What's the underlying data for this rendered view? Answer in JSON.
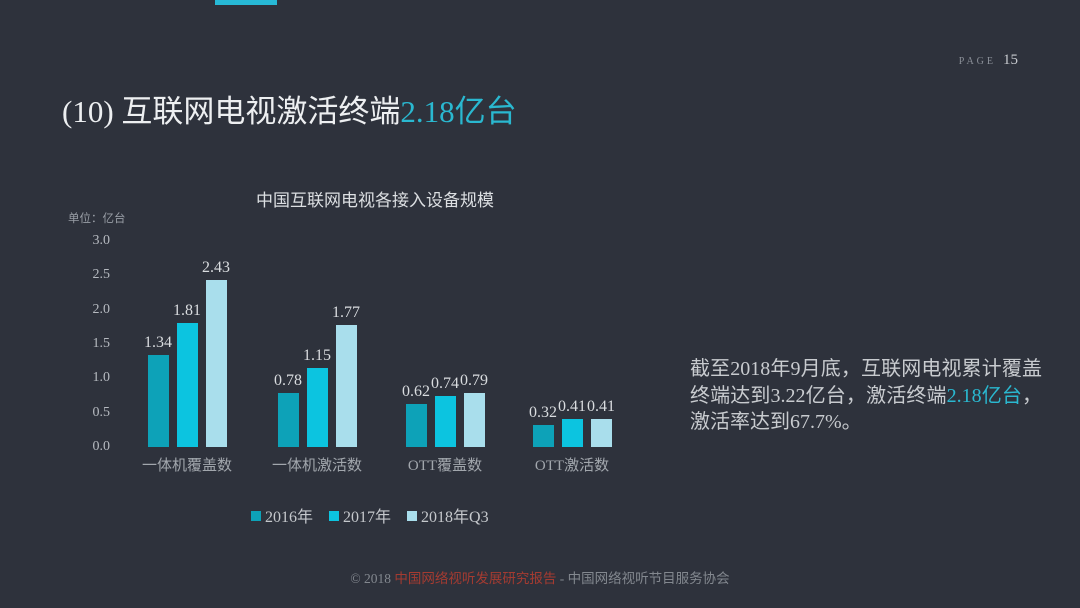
{
  "slide": {
    "background_color": "#2e323c",
    "accent_color": "#27b9d6"
  },
  "header": {
    "page_label": "PAGE",
    "page_number": "15"
  },
  "title": {
    "prefix": "(10) 互联网电视激活终端",
    "highlight": "2.18亿台",
    "highlight_color": "#2ab8d0"
  },
  "chart_data": {
    "type": "bar",
    "title": "中国互联网电视各接入设备规模",
    "unit_label": "单位：亿台",
    "categories": [
      "一体机覆盖数",
      "一体机激活数",
      "OTT覆盖数",
      "OTT激活数"
    ],
    "series": [
      {
        "name": "2016年",
        "color": "#0da2b8",
        "values": [
          1.34,
          0.78,
          0.62,
          0.32
        ]
      },
      {
        "name": "2017年",
        "color": "#0cc4e0",
        "values": [
          1.81,
          1.15,
          0.74,
          0.41
        ]
      },
      {
        "name": "2018年Q3",
        "color": "#a9deec",
        "values": [
          2.43,
          1.77,
          0.79,
          0.41
        ]
      }
    ],
    "y_ticks": [
      "3.0",
      "2.5",
      "2.0",
      "1.5",
      "1.0",
      "0.5",
      "0.0"
    ],
    "ylim": [
      0,
      3.0
    ],
    "grid": false,
    "legend_position": "bottom",
    "value_labels_shown": true
  },
  "annotation": {
    "text_before": "截至2018年9月底，互联网电视累计覆盖终端达到3.22亿台，激活终端",
    "highlight": "2.18亿台",
    "text_after": "，激活率达到67.7%。",
    "highlight_color": "#2ab8d0"
  },
  "footer": {
    "prefix": "© 2018 ",
    "report_name": "中国网络视听发展研究报告",
    "report_color": "#a43b31",
    "separator": " - ",
    "org_name": "中国网络视听节目服务协会"
  }
}
